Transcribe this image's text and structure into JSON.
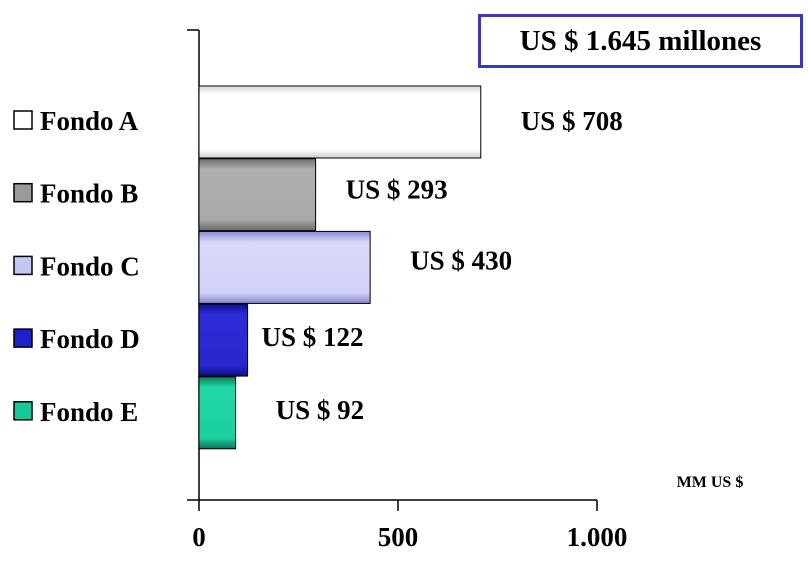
{
  "chart_data": {
    "type": "bar",
    "orientation": "horizontal",
    "categories": [
      "Fondo A",
      "Fondo B",
      "Fondo C",
      "Fondo D",
      "Fondo E"
    ],
    "values": [
      708,
      293,
      430,
      122,
      92
    ],
    "data_labels": [
      "US $ 708",
      "US $ 293",
      "US $ 430",
      "US $ 122",
      "US $ 92"
    ],
    "colors": [
      "#ffffff",
      "#9a9a9a",
      "#c6c6f4",
      "#2020c8",
      "#19c79a"
    ],
    "xlim": [
      0,
      1000
    ],
    "xticks": [
      0,
      500,
      1000
    ],
    "xtick_labels": [
      "0",
      "500",
      "1.000"
    ],
    "xlabel": "MM US $",
    "total_label": "US $ 1.645 millones",
    "legend": "left",
    "grid": false
  }
}
